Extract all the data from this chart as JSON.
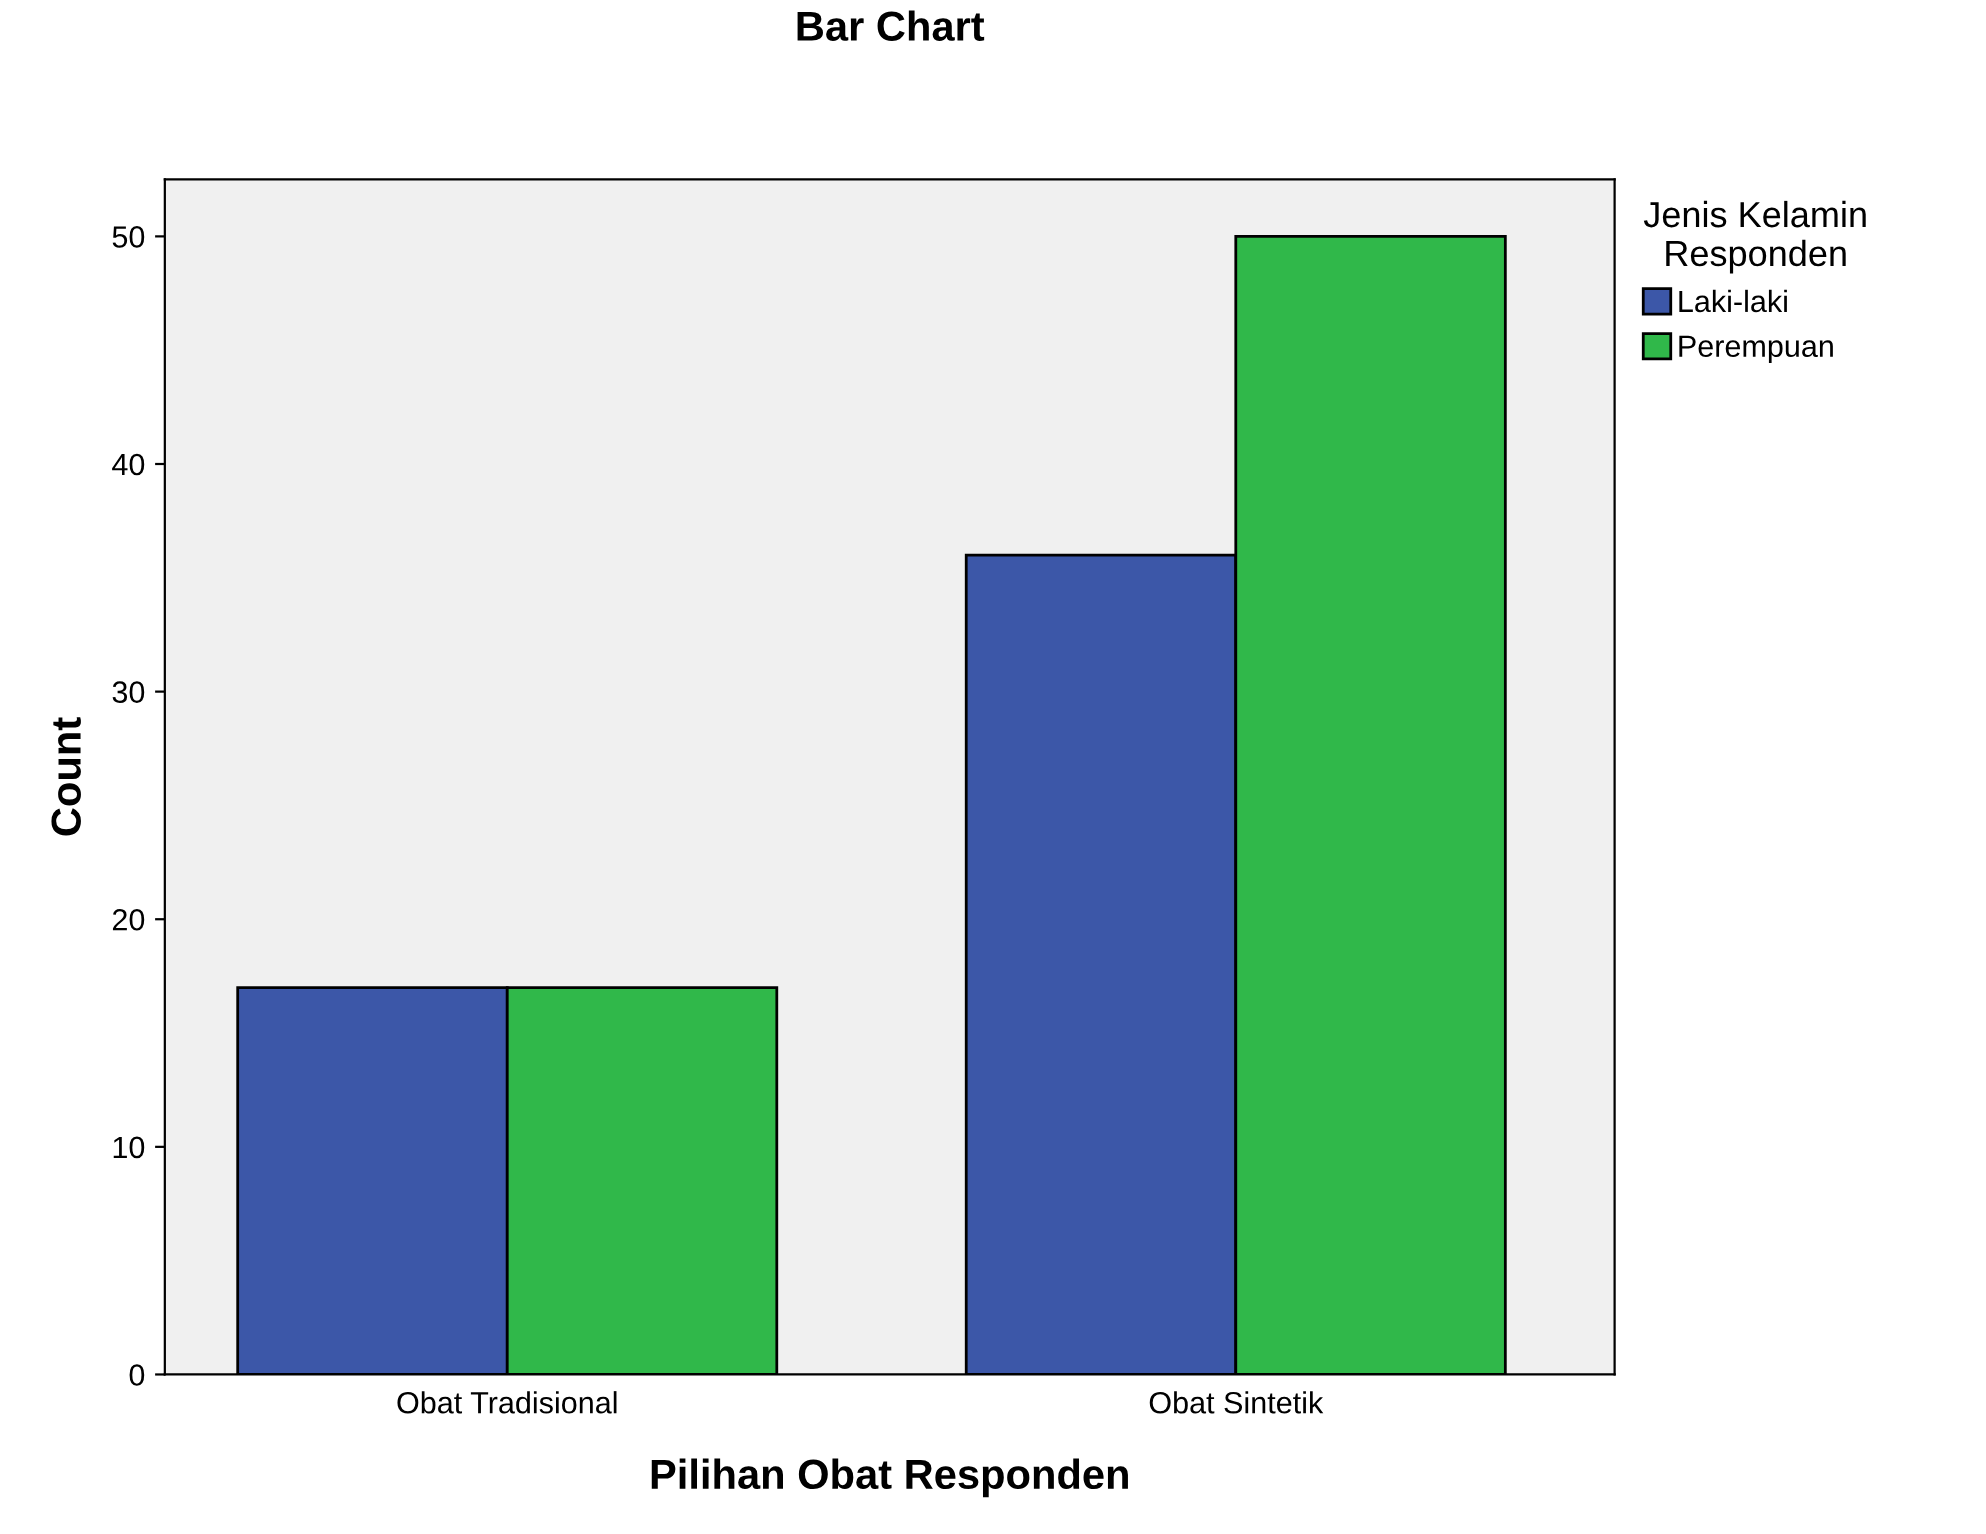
{
  "chart_data": {
    "type": "bar",
    "title": "Bar Chart",
    "xlabel": "Pilihan Obat Responden",
    "ylabel": "Count",
    "legend_title": "Jenis Kelamin\nResponden",
    "categories": [
      "Obat Tradisional",
      "Obat Sintetik"
    ],
    "series": [
      {
        "name": "Laki-laki",
        "color": "#3c57a8",
        "values": [
          17,
          36
        ]
      },
      {
        "name": "Perempuan",
        "color": "#30b84a",
        "values": [
          17,
          50
        ]
      }
    ],
    "ylim": [
      0,
      52.5
    ],
    "yticks": [
      0,
      10,
      20,
      30,
      40,
      50
    ],
    "grid": false,
    "legend": "top right"
  }
}
